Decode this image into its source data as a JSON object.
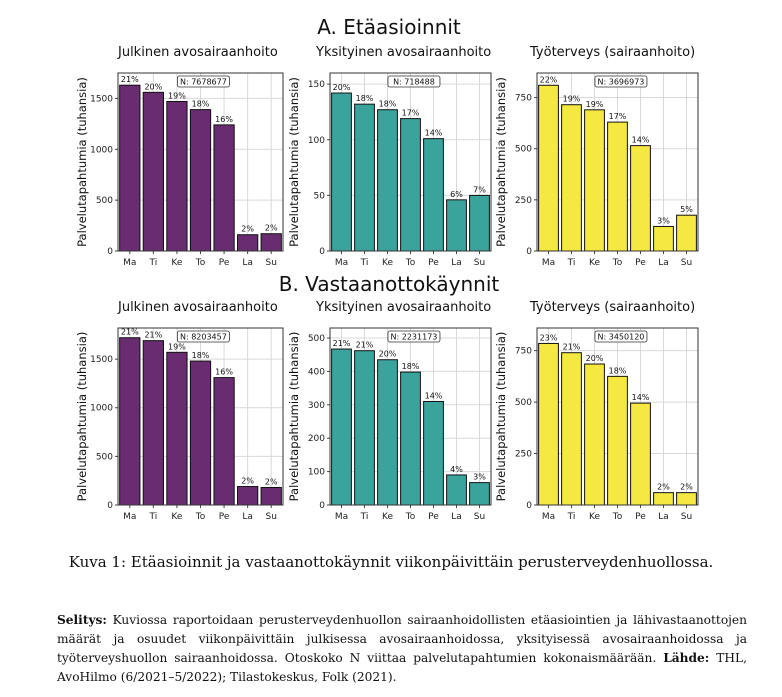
{
  "section_titles": [
    "A. Etäasioinnit",
    "B. Vastaanottokäynnit"
  ],
  "caption": "Kuva 1: Etäasioinnit ja vastaanottokäynnit viikonpäivittäin perusterveydenhuollossa.",
  "note": {
    "label": "Selitys:",
    "text": " Kuviossa raportoidaan perusterveydenhuollon sairaanhoidollisten etäasiointien ja lähivastaanottojen määrät ja osuudet viikonpäivittäin julkisessa avosairaanhoidossa, yksityisessä avosairaanhoidossa ja työterveyshuollon sairaanhoidossa. Otoskoko N viittaa palvelutapahtumien kokonaismäärään. ",
    "source_label": "Lähde:",
    "source_text": " THL, AvoHilmo (6/2021–5/2022); Tilastokeskus, Folk (2021)."
  },
  "colors": {
    "julkinen": "#6a2c70",
    "yksityinen": "#3aa39c",
    "tyoterveys": "#f5e840",
    "grid": "#d9d9d9"
  },
  "chart_data": [
    {
      "type": "bar",
      "section": "A. Etäasioinnit",
      "title": "Julkinen avosairaanhoito",
      "n_label": "N: 7678677",
      "ylabel": "Palvelutapahtumia (tuhansia)",
      "categories": [
        "Ma",
        "Ti",
        "Ke",
        "To",
        "Pe",
        "La",
        "Su"
      ],
      "values": [
        1630,
        1560,
        1470,
        1390,
        1240,
        160,
        170
      ],
      "labels": [
        "21%",
        "20%",
        "19%",
        "18%",
        "16%",
        "2%",
        "2%"
      ],
      "ylim": [
        0,
        1750
      ],
      "yticks": [
        0,
        500,
        1000,
        1500
      ],
      "color_key": "julkinen"
    },
    {
      "type": "bar",
      "section": "A. Etäasioinnit",
      "title": "Yksityinen avosairaanhoito",
      "n_label": "N: 718488",
      "ylabel": "Palvelutapahtumia (tuhansia)",
      "categories": [
        "Ma",
        "Ti",
        "Ke",
        "To",
        "Pe",
        "La",
        "Su"
      ],
      "values": [
        142,
        132,
        127,
        119,
        101,
        46,
        50
      ],
      "labels": [
        "20%",
        "18%",
        "18%",
        "17%",
        "14%",
        "6%",
        "7%"
      ],
      "ylim": [
        0,
        160
      ],
      "yticks": [
        0,
        50,
        100,
        150
      ],
      "color_key": "yksityinen"
    },
    {
      "type": "bar",
      "section": "A. Etäasioinnit",
      "title": "Työterveys (sairaanhoito)",
      "n_label": "N: 3696973",
      "ylabel": "Palvelutapahtumia (tuhansia)",
      "categories": [
        "Ma",
        "Ti",
        "Ke",
        "To",
        "Pe",
        "La",
        "Su"
      ],
      "values": [
        810,
        715,
        690,
        630,
        515,
        120,
        175
      ],
      "labels": [
        "22%",
        "19%",
        "19%",
        "17%",
        "14%",
        "3%",
        "5%"
      ],
      "ylim": [
        0,
        870
      ],
      "yticks": [
        0,
        250,
        500,
        750
      ],
      "color_key": "tyoterveys"
    },
    {
      "type": "bar",
      "section": "B. Vastaanottokäynnit",
      "title": "Julkinen avosairaanhoito",
      "n_label": "N: 8203457",
      "ylabel": "Palvelutapahtumia (tuhansia)",
      "categories": [
        "Ma",
        "Ti",
        "Ke",
        "To",
        "Pe",
        "La",
        "Su"
      ],
      "values": [
        1720,
        1690,
        1570,
        1480,
        1310,
        190,
        180
      ],
      "labels": [
        "21%",
        "21%",
        "19%",
        "18%",
        "16%",
        "2%",
        "2%"
      ],
      "ylim": [
        0,
        1820
      ],
      "yticks": [
        0,
        500,
        1000,
        1500
      ],
      "color_key": "julkinen"
    },
    {
      "type": "bar",
      "section": "B. Vastaanottokäynnit",
      "title": "Yksityinen avosairaanhoito",
      "n_label": "N: 2231173",
      "ylabel": "Palvelutapahtumia (tuhansia)",
      "categories": [
        "Ma",
        "Ti",
        "Ke",
        "To",
        "Pe",
        "La",
        "Su"
      ],
      "values": [
        467,
        462,
        435,
        398,
        310,
        90,
        67
      ],
      "labels": [
        "21%",
        "21%",
        "20%",
        "18%",
        "14%",
        "4%",
        "3%"
      ],
      "ylim": [
        0,
        530
      ],
      "yticks": [
        0,
        100,
        200,
        300,
        400,
        500
      ],
      "color_key": "yksityinen"
    },
    {
      "type": "bar",
      "section": "B. Vastaanottokäynnit",
      "title": "Työterveys (sairaanhoito)",
      "n_label": "N: 3450120",
      "ylabel": "Palvelutapahtumia (tuhansia)",
      "categories": [
        "Ma",
        "Ti",
        "Ke",
        "To",
        "Pe",
        "La",
        "Su"
      ],
      "values": [
        785,
        740,
        685,
        625,
        495,
        60,
        60
      ],
      "labels": [
        "23%",
        "21%",
        "20%",
        "18%",
        "14%",
        "2%",
        "2%"
      ],
      "ylim": [
        0,
        860
      ],
      "yticks": [
        0,
        250,
        500,
        750
      ],
      "color_key": "tyoterveys"
    }
  ]
}
